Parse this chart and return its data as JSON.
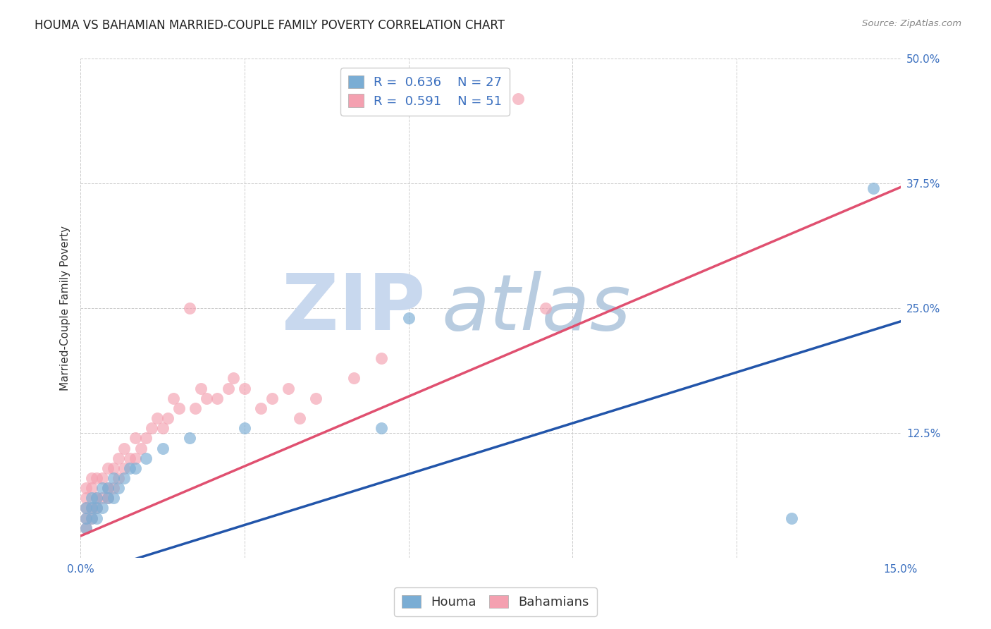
{
  "title": "HOUMA VS BAHAMIAN MARRIED-COUPLE FAMILY POVERTY CORRELATION CHART",
  "source": "Source: ZipAtlas.com",
  "ylabel": "Married-Couple Family Poverty",
  "xlim": [
    0.0,
    0.15
  ],
  "ylim": [
    0.0,
    0.5
  ],
  "xticks": [
    0.0,
    0.03,
    0.06,
    0.09,
    0.12,
    0.15
  ],
  "yticks": [
    0.0,
    0.125,
    0.25,
    0.375,
    0.5
  ],
  "houma_R": 0.636,
  "houma_N": 27,
  "bahamas_R": 0.591,
  "bahamas_N": 51,
  "houma_color": "#7aadd4",
  "bahamas_color": "#f4a0b0",
  "houma_line_color": "#2255aa",
  "bahamas_line_color": "#e05070",
  "watermark_zip": "ZIP",
  "watermark_atlas": "atlas",
  "watermark_zip_color": "#c8d8ee",
  "watermark_atlas_color": "#b8cce0",
  "legend_label_houma": "Houma",
  "legend_label_bahamas": "Bahamians",
  "houma_x": [
    0.001,
    0.001,
    0.001,
    0.002,
    0.002,
    0.002,
    0.003,
    0.003,
    0.003,
    0.004,
    0.004,
    0.005,
    0.005,
    0.006,
    0.006,
    0.007,
    0.008,
    0.009,
    0.01,
    0.012,
    0.015,
    0.02,
    0.03,
    0.055,
    0.06,
    0.13,
    0.145
  ],
  "houma_y": [
    0.03,
    0.04,
    0.05,
    0.04,
    0.05,
    0.06,
    0.04,
    0.05,
    0.06,
    0.05,
    0.07,
    0.06,
    0.07,
    0.06,
    0.08,
    0.07,
    0.08,
    0.09,
    0.09,
    0.1,
    0.11,
    0.12,
    0.13,
    0.13,
    0.24,
    0.04,
    0.37
  ],
  "bahamas_x": [
    0.001,
    0.001,
    0.001,
    0.001,
    0.001,
    0.002,
    0.002,
    0.002,
    0.002,
    0.003,
    0.003,
    0.003,
    0.004,
    0.004,
    0.005,
    0.005,
    0.005,
    0.006,
    0.006,
    0.007,
    0.007,
    0.008,
    0.008,
    0.009,
    0.01,
    0.01,
    0.011,
    0.012,
    0.013,
    0.014,
    0.015,
    0.016,
    0.017,
    0.018,
    0.02,
    0.021,
    0.022,
    0.023,
    0.025,
    0.027,
    0.028,
    0.03,
    0.033,
    0.035,
    0.038,
    0.04,
    0.043,
    0.05,
    0.055,
    0.08,
    0.085
  ],
  "bahamas_y": [
    0.03,
    0.04,
    0.05,
    0.06,
    0.07,
    0.04,
    0.05,
    0.07,
    0.08,
    0.05,
    0.06,
    0.08,
    0.06,
    0.08,
    0.06,
    0.07,
    0.09,
    0.07,
    0.09,
    0.08,
    0.1,
    0.09,
    0.11,
    0.1,
    0.1,
    0.12,
    0.11,
    0.12,
    0.13,
    0.14,
    0.13,
    0.14,
    0.16,
    0.15,
    0.25,
    0.15,
    0.17,
    0.16,
    0.16,
    0.17,
    0.18,
    0.17,
    0.15,
    0.16,
    0.17,
    0.14,
    0.16,
    0.18,
    0.2,
    0.46,
    0.25
  ],
  "title_fontsize": 12,
  "axis_label_fontsize": 11,
  "tick_fontsize": 11,
  "legend_fontsize": 13,
  "houma_line_intercept": -0.018,
  "houma_line_slope": 1.7,
  "bahamas_line_intercept": 0.022,
  "bahamas_line_slope": 2.33
}
